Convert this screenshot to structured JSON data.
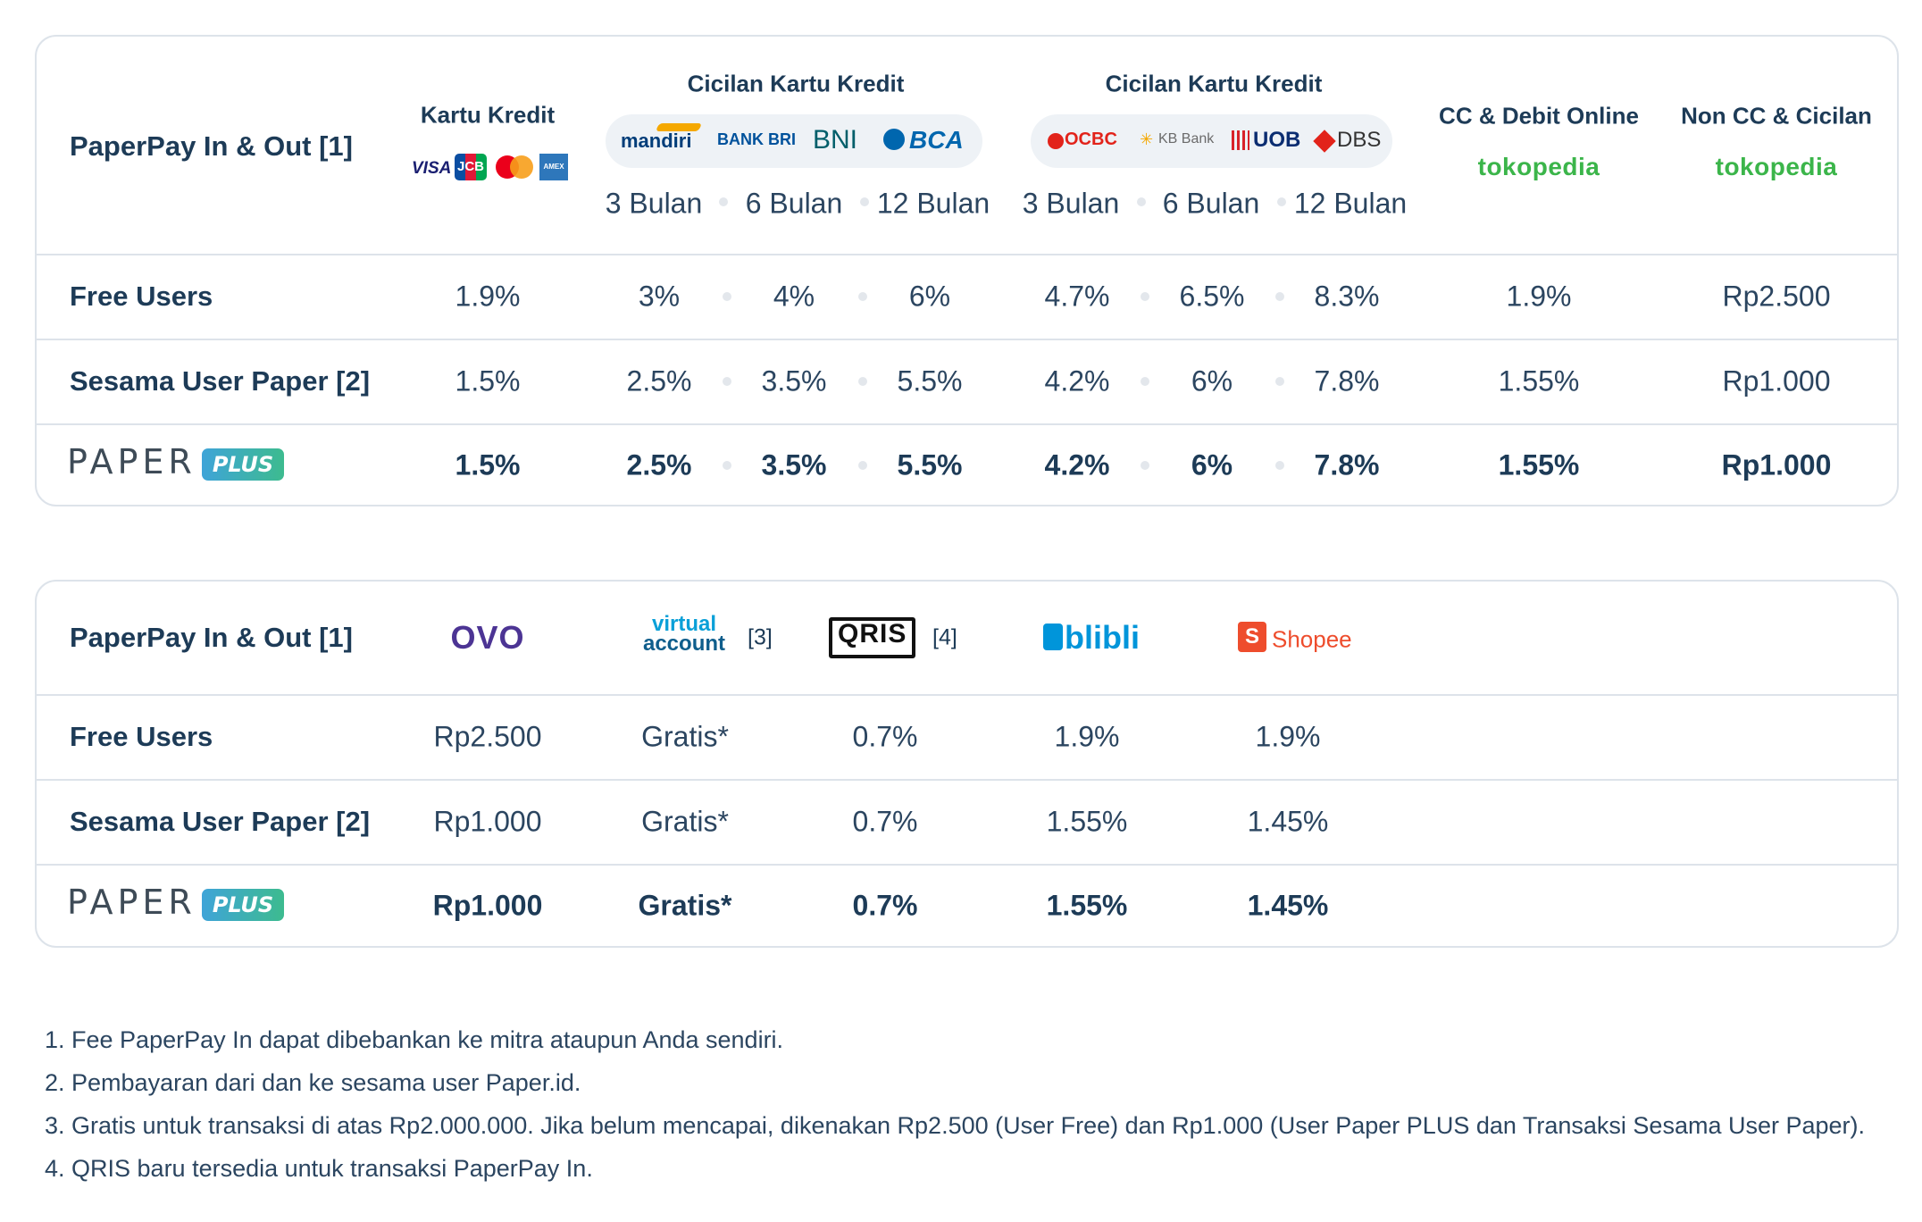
{
  "table1": {
    "header": {
      "title": "PaperPay In & Out  [1]",
      "kartu_kredit": "Kartu Kredit",
      "cicilan1": "Cicilan Kartu Kredit",
      "cicilan2": "Cicilan Kartu Kredit",
      "cc_debit": "CC & Debit Online",
      "non_cc": "Non CC & Cicilan",
      "periods": [
        "3 Bulan",
        "6 Bulan",
        "12 Bulan"
      ],
      "card_brands": [
        "VISA",
        "JCB",
        "Mastercard",
        "AMEX"
      ],
      "banks1": [
        "mandiri",
        "BANK BRI",
        "BNI",
        "BCA"
      ],
      "banks2": [
        "OCBC",
        "KB Bank",
        "UOB",
        "DBS"
      ],
      "merchant": "tokopedia"
    },
    "rows": [
      {
        "label": "Free Users",
        "values": [
          "1.9%",
          "3%",
          "4%",
          "6%",
          "4.7%",
          "6.5%",
          "8.3%",
          "1.9%",
          "Rp2.500"
        ]
      },
      {
        "label": "Sesama User Paper [2]",
        "values": [
          "1.5%",
          "2.5%",
          "3.5%",
          "5.5%",
          "4.2%",
          "6%",
          "7.8%",
          "1.55%",
          "Rp1.000"
        ]
      },
      {
        "label": "PAPER",
        "badge": "PLUS",
        "values": [
          "1.5%",
          "2.5%",
          "3.5%",
          "5.5%",
          "4.2%",
          "6%",
          "7.8%",
          "1.55%",
          "Rp1.000"
        ]
      }
    ]
  },
  "table2": {
    "header": {
      "title": "PaperPay In & Out  [1]",
      "ovo": "OVO",
      "va_line1": "virtual",
      "va_line2": "account",
      "va_note": "[3]",
      "qris": "QRIS",
      "qris_note": "[4]",
      "blibli": "blibli",
      "shopee": "Shopee"
    },
    "rows": [
      {
        "label": "Free Users",
        "values": [
          "Rp2.500",
          "Gratis*",
          "0.7%",
          "1.9%",
          "1.9%"
        ]
      },
      {
        "label": "Sesama User Paper [2]",
        "values": [
          "Rp1.000",
          "Gratis*",
          "0.7%",
          "1.55%",
          "1.45%"
        ]
      },
      {
        "label": "PAPER",
        "badge": "PLUS",
        "values": [
          "Rp1.000",
          "Gratis*",
          "0.7%",
          "1.55%",
          "1.45%"
        ]
      }
    ]
  },
  "notes": [
    "1. Fee PaperPay In dapat dibebankan ke mitra ataupun Anda sendiri.",
    "2. Pembayaran dari dan ke sesama user Paper.id.",
    "3. Gratis untuk transaksi di atas Rp2.000.000. Jika belum mencapai, dikenakan Rp2.500 (User Free) dan Rp1.000 (User Paper PLUS dan Transaksi Sesama User Paper).",
    "4. QRIS baru tersedia untuk transaksi PaperPay In."
  ],
  "colors": {
    "accent": "#1d3b57",
    "border": "#dde3ea",
    "tokopedia": "#3bb54a",
    "ovo": "#4c3494",
    "shopee": "#ee4d2d",
    "blibli": "#0095da"
  }
}
